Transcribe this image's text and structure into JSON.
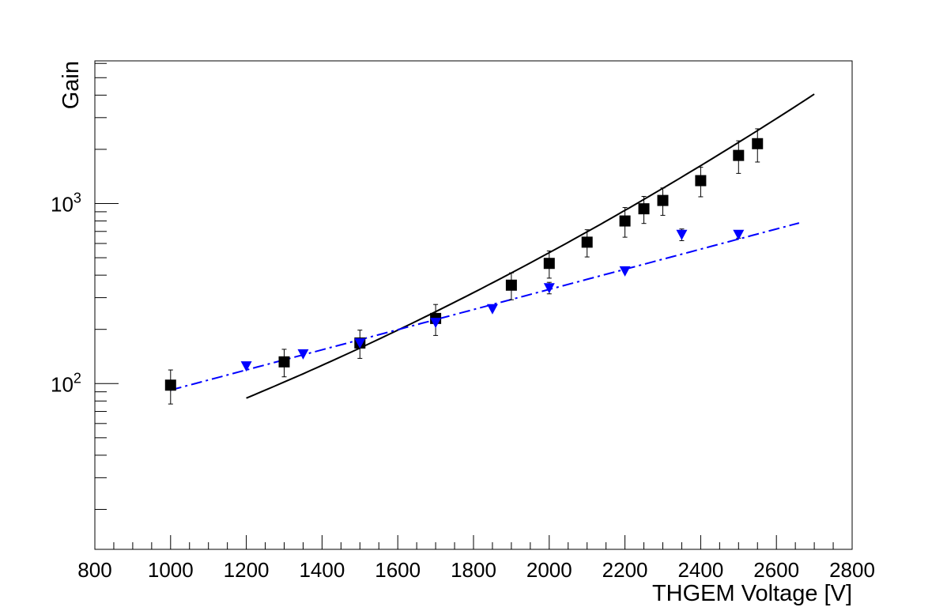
{
  "chart_data": {
    "type": "scatter",
    "title": "",
    "xlabel": "THGEM Voltage [V]",
    "ylabel": "Gain",
    "xlim": [
      800,
      2800
    ],
    "ylim": [
      12,
      6200
    ],
    "yscale": "log",
    "grid": false,
    "x_ticks": [
      800,
      1000,
      1200,
      1400,
      1600,
      1800,
      2000,
      2200,
      2400,
      2600,
      2800
    ],
    "x_tick_labels": [
      "800",
      "1000",
      "1200",
      "1400",
      "1600",
      "1800",
      "2000",
      "2200",
      "2400",
      "2600",
      "2800"
    ],
    "y_labeled_ticks": [
      {
        "value": 100,
        "base": "10",
        "exp": "2"
      },
      {
        "value": 1000,
        "base": "10",
        "exp": "3"
      }
    ],
    "series": [
      {
        "marker": "square",
        "color": "#000000",
        "points": [
          {
            "x": 1000,
            "y": 98,
            "err": 21
          },
          {
            "x": 1300,
            "y": 132,
            "err": 23
          },
          {
            "x": 1500,
            "y": 168,
            "err": 30
          },
          {
            "x": 1700,
            "y": 230,
            "err": 45
          },
          {
            "x": 1900,
            "y": 352,
            "err": 60
          },
          {
            "x": 2000,
            "y": 465,
            "err": 80
          },
          {
            "x": 2100,
            "y": 610,
            "err": 105
          },
          {
            "x": 2200,
            "y": 800,
            "err": 150
          },
          {
            "x": 2250,
            "y": 935,
            "err": 160
          },
          {
            "x": 2300,
            "y": 1040,
            "err": 180
          },
          {
            "x": 2400,
            "y": 1340,
            "err": 250
          },
          {
            "x": 2500,
            "y": 1850,
            "err": 380
          },
          {
            "x": 2550,
            "y": 2150,
            "err": 450
          }
        ]
      },
      {
        "marker": "triangle-down",
        "color": "#0000ff",
        "points": [
          {
            "x": 1200,
            "y": 125,
            "err": 0
          },
          {
            "x": 1350,
            "y": 146,
            "err": 0
          },
          {
            "x": 1500,
            "y": 168,
            "err": 0
          },
          {
            "x": 1700,
            "y": 218,
            "err": 0
          },
          {
            "x": 1850,
            "y": 260,
            "err": 0
          },
          {
            "x": 2000,
            "y": 340,
            "err": 25
          },
          {
            "x": 2200,
            "y": 422,
            "err": 0
          },
          {
            "x": 2350,
            "y": 672,
            "err": 50
          },
          {
            "x": 2500,
            "y": 672,
            "err": 30
          }
        ]
      }
    ],
    "fits": [
      {
        "style": "solid",
        "color": "#000000",
        "kind": "exp-quad",
        "x_range": [
          1200,
          2700
        ],
        "y_at_start": 83,
        "y_at_end": 4050
      },
      {
        "style": "dash-dot",
        "color": "#0000ff",
        "kind": "exp",
        "x_range": [
          1000,
          2660
        ],
        "y_at_start": 92,
        "y_at_end": 780
      }
    ]
  }
}
